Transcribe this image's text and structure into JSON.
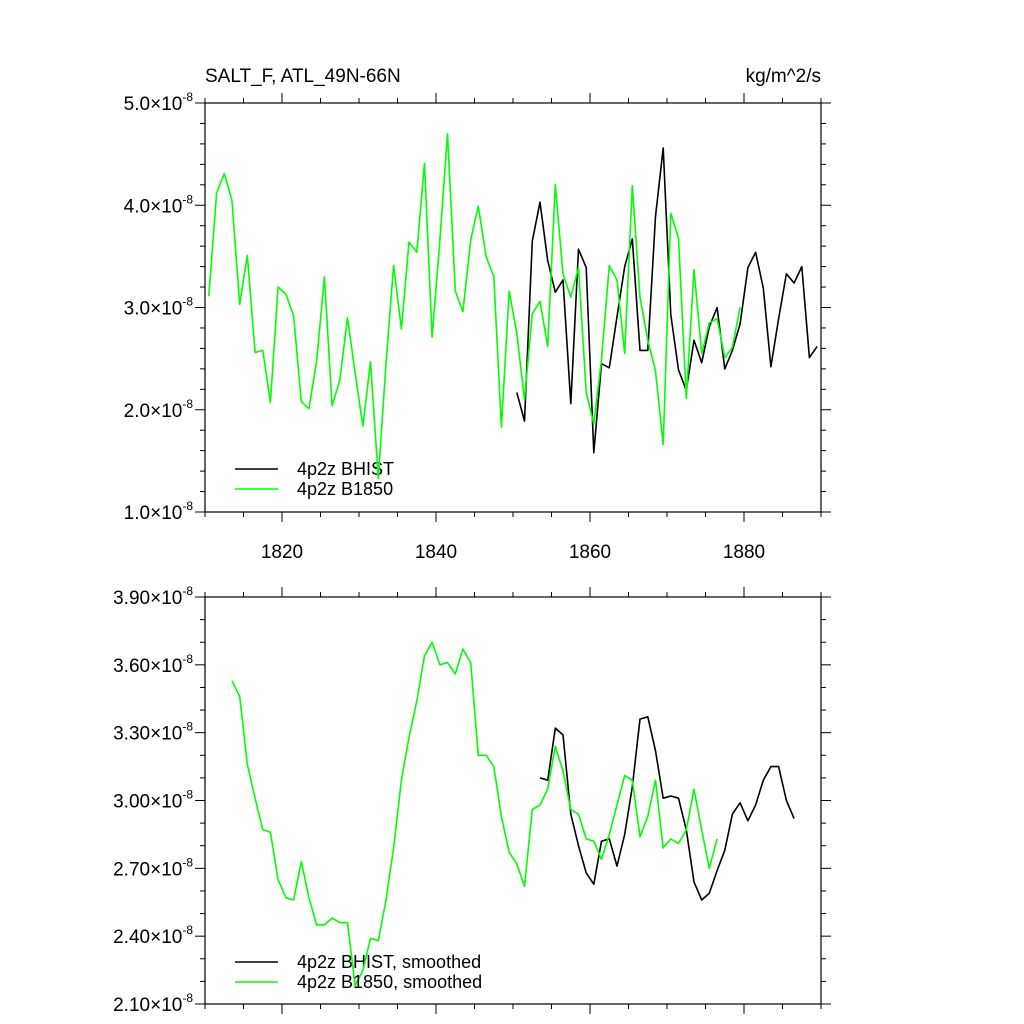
{
  "header": {
    "title": "SALT_F, ATL_49N-66N",
    "units": "kg/m^2/s"
  },
  "colors": {
    "bhist": "#000000",
    "b1850": "#00ff00"
  },
  "chart_data": [
    {
      "type": "line",
      "title": "SALT_F, ATL_49N-66N",
      "units_label": "kg/m^2/s",
      "xlabel": "",
      "ylabel": "",
      "xlim": [
        1810,
        1890
      ],
      "ylim": [
        1.0,
        5.0
      ],
      "y_scale_exponent": -8,
      "x_major_ticks": [
        1820,
        1840,
        1860,
        1880
      ],
      "x_tick_labels": [
        "1820",
        "1840",
        "1860",
        "1880"
      ],
      "x_minor_step": 5,
      "y_major_ticks": [
        1.0,
        2.0,
        3.0,
        4.0,
        5.0
      ],
      "y_tick_labels": [
        "1.0",
        "2.0",
        "3.0",
        "4.0",
        "5.0"
      ],
      "y_minor_step": 0.2,
      "legend": "bottom-left",
      "series": [
        {
          "name": "4p2z BHIST",
          "color": "#000000",
          "x_start": 1850.5,
          "values": [
            2.17,
            1.89,
            3.65,
            4.03,
            3.46,
            3.15,
            3.27,
            2.06,
            3.57,
            3.39,
            1.58,
            2.45,
            2.41,
            2.91,
            3.4,
            3.67,
            2.58,
            2.58,
            3.89,
            4.56,
            2.93,
            2.39,
            2.19,
            2.68,
            2.46,
            2.81,
            3.0,
            2.4,
            2.58,
            2.84,
            3.39,
            3.54,
            3.19,
            2.42,
            2.89,
            3.33,
            3.24,
            3.4,
            2.51,
            2.62
          ]
        },
        {
          "name": "4p2z B1850",
          "color": "#00ff00",
          "x_start": 1810.5,
          "values": [
            3.11,
            4.12,
            4.31,
            4.05,
            3.03,
            3.51,
            2.56,
            2.58,
            2.07,
            3.2,
            3.13,
            2.92,
            2.08,
            2.01,
            2.47,
            3.3,
            2.04,
            2.29,
            2.9,
            2.36,
            1.84,
            2.47,
            1.33,
            2.45,
            3.41,
            2.79,
            3.64,
            3.54,
            4.41,
            2.71,
            3.66,
            4.7,
            3.16,
            2.96,
            3.66,
            3.99,
            3.5,
            3.3,
            1.83,
            3.16,
            2.75,
            2.1,
            2.94,
            3.06,
            2.62,
            4.2,
            3.33,
            3.1,
            3.39,
            2.17,
            1.86,
            2.49,
            3.41,
            3.27,
            2.55,
            4.19,
            3.1,
            2.68,
            2.38,
            1.66,
            3.92,
            3.68,
            2.11,
            3.37,
            2.55,
            2.85,
            2.89,
            2.51,
            2.61,
            3.0
          ]
        }
      ]
    },
    {
      "type": "line",
      "title": "",
      "xlabel": "",
      "ylabel": "",
      "xlim": [
        1810,
        1890
      ],
      "ylim": [
        2.1,
        3.9
      ],
      "y_scale_exponent": -8,
      "x_major_ticks": [
        1820,
        1840,
        1860,
        1880
      ],
      "x_tick_labels": [],
      "x_minor_step": 5,
      "y_major_ticks": [
        2.1,
        2.4,
        2.7,
        3.0,
        3.3,
        3.6,
        3.9
      ],
      "y_tick_labels": [
        "2.10",
        "2.40",
        "2.70",
        "3.00",
        "3.30",
        "3.60",
        "3.90"
      ],
      "y_minor_step": 0.1,
      "legend": "bottom-left",
      "series": [
        {
          "name": "4p2z BHIST, smoothed",
          "color": "#000000",
          "x_start": 1853.5,
          "values": [
            3.1,
            3.09,
            3.32,
            3.29,
            2.94,
            2.8,
            2.68,
            2.63,
            2.82,
            2.83,
            2.71,
            2.85,
            3.06,
            3.36,
            3.37,
            3.22,
            3.01,
            3.02,
            3.01,
            2.87,
            2.64,
            2.56,
            2.59,
            2.69,
            2.78,
            2.94,
            2.99,
            2.91,
            2.98,
            3.09,
            3.15,
            3.15,
            3.0,
            2.92
          ]
        },
        {
          "name": "4p2z B1850, smoothed",
          "color": "#00ff00",
          "x_start": 1813.5,
          "values": [
            3.53,
            3.46,
            3.16,
            3.01,
            2.87,
            2.86,
            2.65,
            2.57,
            2.56,
            2.73,
            2.57,
            2.45,
            2.45,
            2.48,
            2.46,
            2.46,
            2.18,
            2.25,
            2.39,
            2.38,
            2.56,
            2.79,
            3.09,
            3.28,
            3.44,
            3.64,
            3.7,
            3.6,
            3.61,
            3.56,
            3.67,
            3.61,
            3.2,
            3.2,
            3.15,
            2.93,
            2.77,
            2.72,
            2.62,
            2.96,
            2.98,
            3.05,
            3.24,
            3.13,
            2.96,
            2.94,
            2.83,
            2.82,
            2.74,
            2.85,
            2.98,
            3.11,
            3.09,
            2.84,
            2.93,
            3.09,
            2.79,
            2.83,
            2.81,
            2.87,
            3.05,
            2.87,
            2.7,
            2.83
          ]
        }
      ]
    }
  ]
}
